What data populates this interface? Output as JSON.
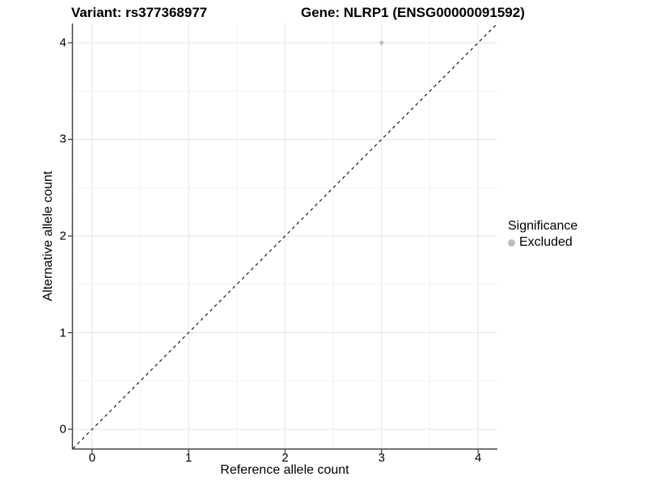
{
  "figure": {
    "title_variant": "Variant: rs377368977",
    "title_gene": "Gene: NLRP1 (ENSG00000091592)"
  },
  "chart_data": {
    "type": "scatter",
    "title_variant": "Variant: rs377368977",
    "title_gene": "Gene: NLRP1 (ENSG00000091592)",
    "xlabel": "Reference allele count",
    "ylabel": "Alternative allele count",
    "xlim": [
      -0.2,
      4.2
    ],
    "ylim": [
      -0.2,
      4.2
    ],
    "x_ticks": [
      0,
      1,
      2,
      3,
      4
    ],
    "y_ticks": [
      0,
      1,
      2,
      3,
      4
    ],
    "x_minor_ticks": [
      0.5,
      1.5,
      2.5,
      3.5
    ],
    "y_minor_ticks": [
      0.5,
      1.5,
      2.5,
      3.5
    ],
    "grid": true,
    "series": [
      {
        "name": "Excluded",
        "color": "#c1c1c1",
        "point_radius": 2.6,
        "points": [
          {
            "x": 3,
            "y": 4
          }
        ]
      }
    ],
    "reference_line": {
      "type": "abline",
      "slope": 1,
      "intercept": 0,
      "linetype": "dashed",
      "color": "#1a1a1a"
    },
    "legend": {
      "title": "Significance",
      "position": "right",
      "entries": [
        {
          "label": "Excluded",
          "color": "#bebebe"
        }
      ]
    }
  },
  "colors": {
    "grid_major": "#e5e5e5",
    "grid_minor": "#f2f2f2",
    "axis_line": "#3c3c3c",
    "tick_mark": "#3c3c3c",
    "text": "#000000"
  }
}
